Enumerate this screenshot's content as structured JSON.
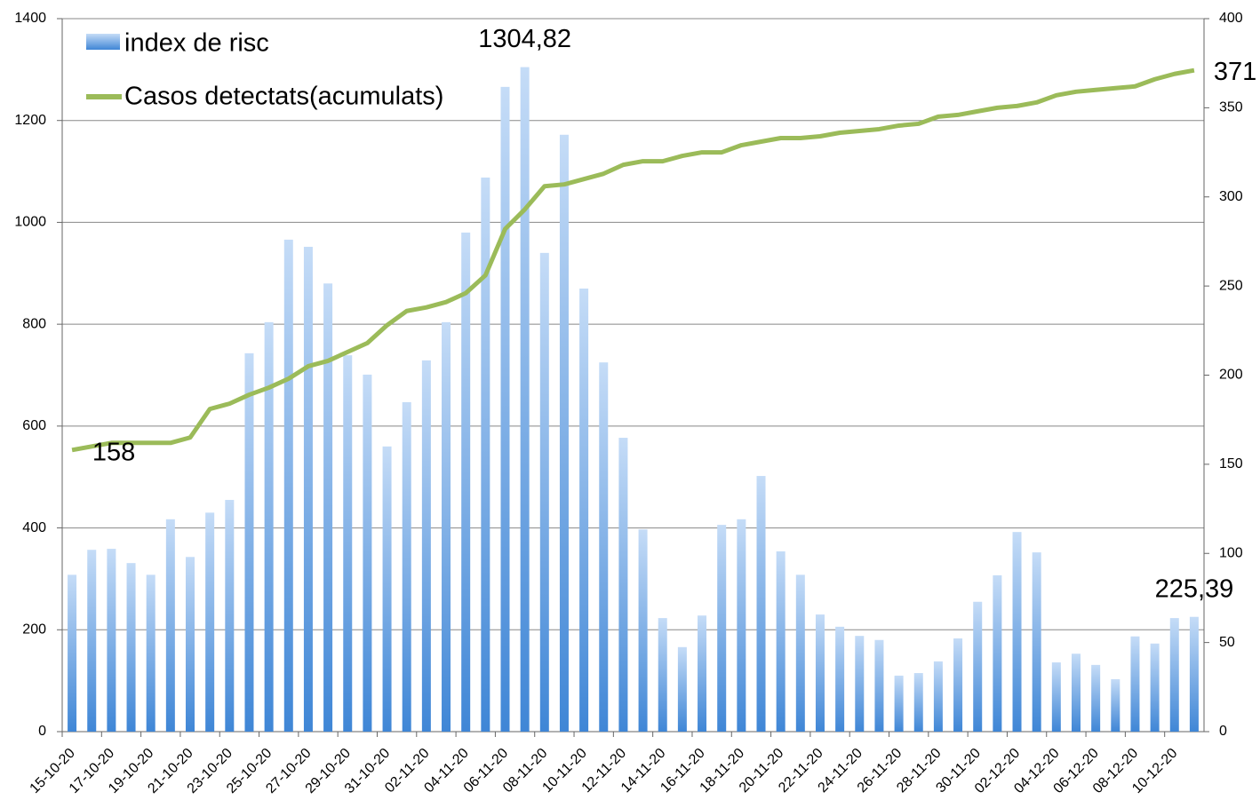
{
  "chart_data": {
    "type": "bar-line",
    "categories": [
      "15-10-20",
      null,
      "17-10-20",
      null,
      "19-10-20",
      null,
      "21-10-20",
      null,
      "23-10-20",
      null,
      "25-10-20",
      null,
      "27-10-20",
      null,
      "29-10-20",
      null,
      "31-10-20",
      null,
      "02-11-20",
      null,
      "04-11-20",
      null,
      "06-11-20",
      null,
      "08-11-20",
      null,
      "10-11-20",
      null,
      "12-11-20",
      null,
      "14-11-20",
      null,
      "16-11-20",
      null,
      "18-11-20",
      null,
      "20-11-20",
      null,
      "22-11-20",
      null,
      "24-11-20",
      null,
      "26-11-20",
      null,
      "28-11-20",
      null,
      "30-11-20",
      null,
      "02-12-20",
      null,
      "04-12-20",
      null,
      "06-12-20",
      null,
      "08-12-20",
      null,
      "10-12-20",
      null
    ],
    "series": [
      {
        "name": "index de risc",
        "type": "bar",
        "color": "#5b9bd5",
        "values": [
          308,
          357,
          359,
          331,
          308,
          417,
          343,
          430,
          455,
          743,
          804,
          966,
          952,
          880,
          739,
          701,
          560,
          647,
          729,
          804,
          980,
          1088,
          1266,
          1304.82,
          940,
          1172,
          870,
          725,
          577,
          397,
          223,
          166,
          228,
          406,
          417,
          502,
          354,
          308,
          230,
          206,
          188,
          180,
          110,
          115,
          138,
          183,
          255,
          307,
          392,
          352,
          136,
          153,
          131,
          103,
          187,
          173,
          223,
          225.39
        ],
        "value_labels": [
          null,
          null,
          null,
          null,
          null,
          null,
          null,
          null,
          null,
          null,
          null,
          null,
          null,
          null,
          null,
          null,
          null,
          null,
          null,
          null,
          null,
          null,
          null,
          "1304,82",
          null,
          null,
          null,
          null,
          null,
          null,
          null,
          null,
          null,
          null,
          null,
          null,
          null,
          null,
          null,
          null,
          null,
          null,
          null,
          null,
          null,
          null,
          null,
          null,
          null,
          null,
          null,
          null,
          null,
          null,
          null,
          null,
          null,
          "225,39"
        ]
      },
      {
        "name": "Casos detectats(acumulats)",
        "type": "line",
        "axis": "y2",
        "color": "#9bbb59",
        "values": [
          158,
          160,
          162,
          162,
          162,
          162,
          165,
          181,
          184,
          189,
          193,
          198,
          205,
          208,
          213,
          218,
          228,
          236,
          238,
          241,
          246,
          256,
          282,
          293,
          306,
          307,
          310,
          313,
          318,
          320,
          320,
          323,
          325,
          325,
          329,
          331,
          333,
          333,
          334,
          336,
          337,
          338,
          340,
          341,
          345,
          346,
          348,
          350,
          351,
          353,
          357,
          359,
          360,
          361,
          362,
          366,
          369,
          371
        ],
        "value_labels": [
          "158",
          null,
          null,
          null,
          null,
          null,
          null,
          null,
          null,
          null,
          null,
          null,
          null,
          null,
          null,
          null,
          null,
          null,
          null,
          null,
          null,
          null,
          null,
          null,
          null,
          null,
          null,
          null,
          null,
          null,
          null,
          null,
          null,
          null,
          null,
          null,
          null,
          null,
          null,
          null,
          null,
          null,
          null,
          null,
          null,
          null,
          null,
          null,
          null,
          null,
          null,
          null,
          null,
          null,
          null,
          null,
          null,
          "371"
        ]
      }
    ],
    "ylim": [
      0,
      1400
    ],
    "yticks": [
      0,
      200,
      400,
      600,
      800,
      1000,
      1200,
      1400
    ],
    "y2lim": [
      0,
      400
    ],
    "y2ticks": [
      0,
      50,
      100,
      150,
      200,
      250,
      300,
      350,
      400
    ],
    "grid": true,
    "legend": "top-left"
  }
}
